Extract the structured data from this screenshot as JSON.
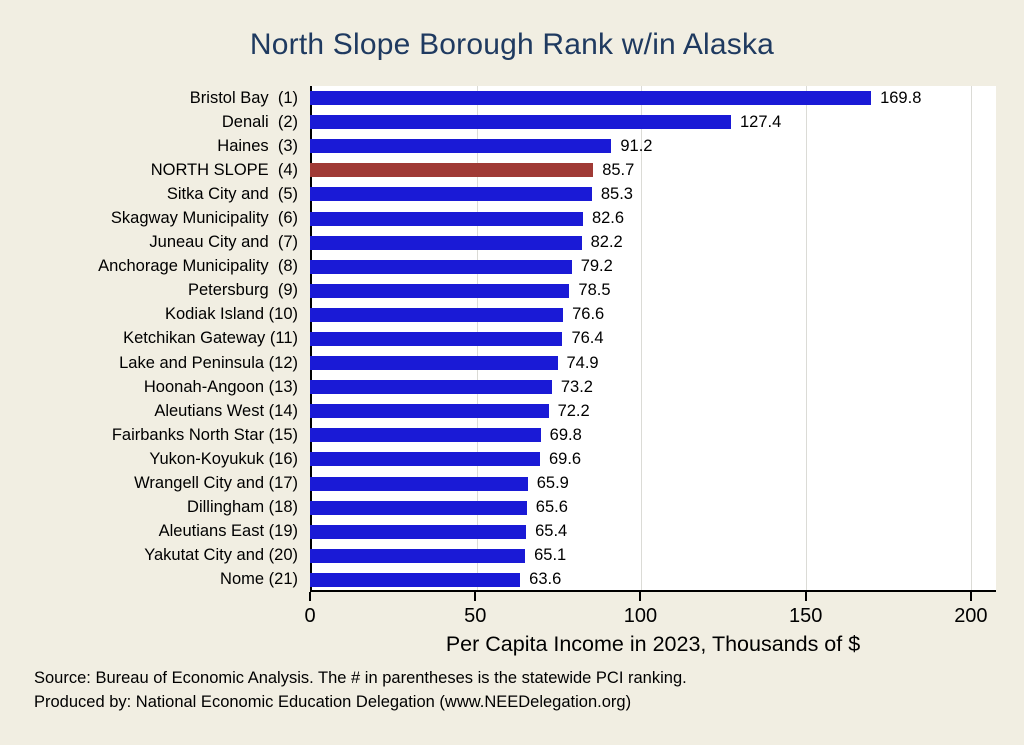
{
  "page": {
    "background_color": "#F1EEE2",
    "title_color": "#1F3A60"
  },
  "chart_data": {
    "type": "bar",
    "orientation": "horizontal",
    "title": "North Slope Borough Rank w/in Alaska",
    "xlabel": "Per Capita Income in 2023, Thousands of $",
    "categories": [
      "Bristol Bay  (1)",
      "Denali  (2)",
      "Haines  (3)",
      "NORTH SLOPE  (4)",
      "Sitka City and  (5)",
      "Skagway Municipality  (6)",
      "Juneau City and  (7)",
      "Anchorage Municipality  (8)",
      "Petersburg  (9)",
      "Kodiak Island (10)",
      "Ketchikan Gateway (11)",
      "Lake and Peninsula (12)",
      "Hoonah-Angoon (13)",
      "Aleutians West (14)",
      "Fairbanks North Star (15)",
      "Yukon-Koyukuk (16)",
      "Wrangell City and (17)",
      "Dillingham (18)",
      "Aleutians East (19)",
      "Yakutat City and (20)",
      "Nome (21)"
    ],
    "values": [
      169.8,
      127.4,
      91.2,
      85.7,
      85.3,
      82.6,
      82.2,
      79.2,
      78.5,
      76.6,
      76.4,
      74.9,
      73.2,
      72.2,
      69.8,
      69.6,
      65.9,
      65.6,
      65.4,
      65.1,
      63.6
    ],
    "highlight_index": 3,
    "bar_color": "#1A1AD6",
    "highlight_color": "#A03A35",
    "x_ticks": [
      0,
      50,
      100,
      150,
      200
    ],
    "xlim": [
      0,
      207.6
    ],
    "grid": true,
    "gridline_color": "#DBDBD6",
    "legend": "none"
  },
  "footer": {
    "source": "Source: Bureau of Economic Analysis. The # in parentheses is the statewide PCI ranking.",
    "produced": "Produced by: National Economic Education Delegation (www.NEEDelegation.org)"
  }
}
